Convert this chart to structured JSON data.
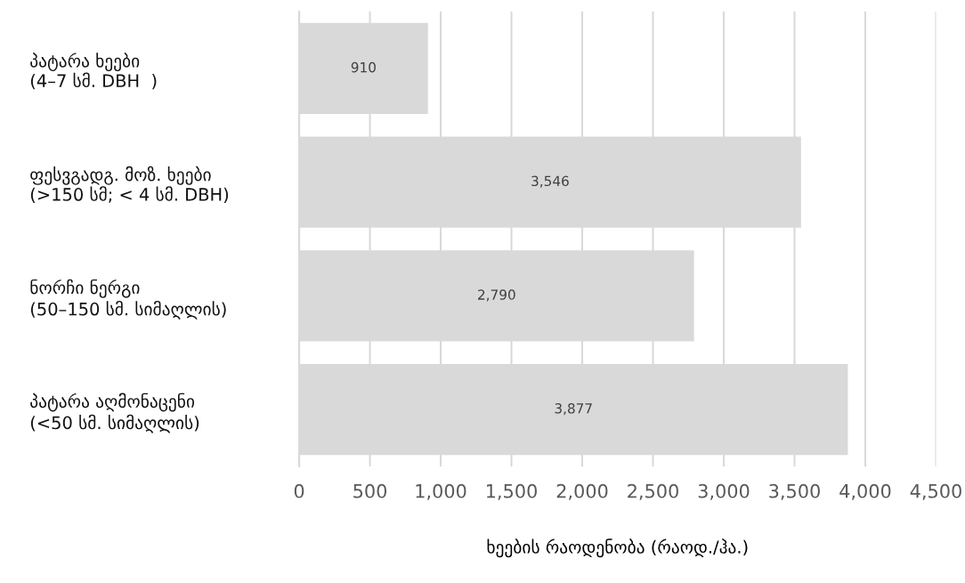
{
  "chart_data": {
    "type": "bar",
    "orientation": "horizontal",
    "categories": [
      "პატარა ხეები\n(4–7 სმ. DBH  )",
      "ფესვგადგ. მოზ. ხეები\n(>150 სმ; < 4 სმ. DBH)",
      "ნორჩი ნერგი\n(50–150 სმ. სიმაღლის)",
      "პატარა აღმონაცენი\n(<50 სმ. სიმაღლის)"
    ],
    "values": [
      910,
      3546,
      2790,
      3877
    ],
    "value_labels": [
      "910",
      "3,546",
      "2,790",
      "3,877"
    ],
    "color": "#d9d9d9",
    "xlim": [
      0,
      4500
    ],
    "xticks": [
      {
        "value": 0,
        "label": "0"
      },
      {
        "value": 500,
        "label": "500"
      },
      {
        "value": 1000,
        "label": "1,000"
      },
      {
        "value": 1500,
        "label": "1,500"
      },
      {
        "value": 2000,
        "label": "2,000"
      },
      {
        "value": 2500,
        "label": "2,500"
      },
      {
        "value": 3000,
        "label": "3,000"
      },
      {
        "value": 3500,
        "label": "3,500"
      },
      {
        "value": 4000,
        "label": "4,000"
      },
      {
        "value": 4500,
        "label": "4,500"
      }
    ],
    "xlabel": "ხეების რაოდენობა (რაოდ./ჰა.)",
    "grid": "x"
  }
}
